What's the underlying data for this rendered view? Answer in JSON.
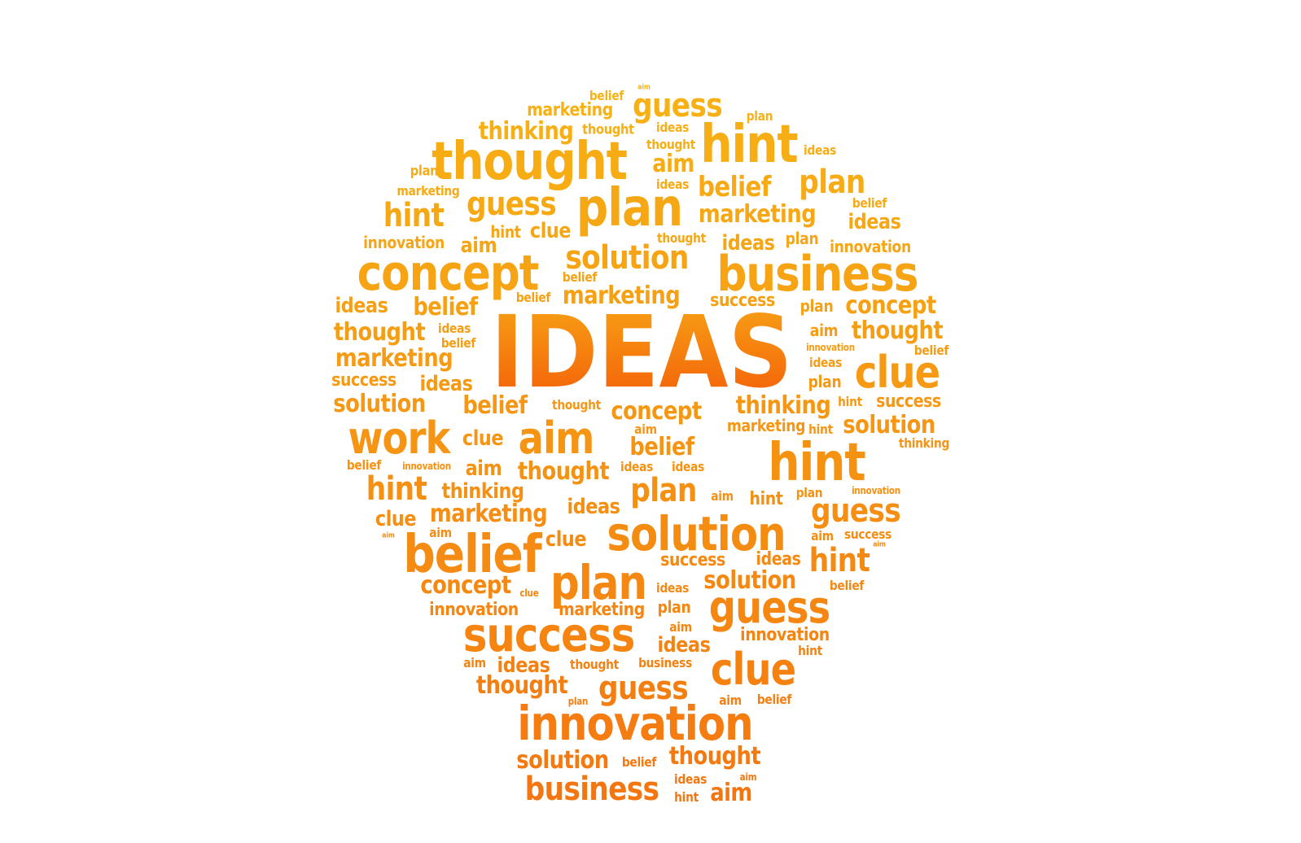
{
  "colors": {
    "background": "#ffffff",
    "top_word_color": "#f7b315",
    "bottom_word_color": "#f47510",
    "hero_gradient_top": "#f7a015",
    "hero_gradient_bottom": "#f46008"
  },
  "words": [
    {
      "text": "IDEAS"
    },
    {
      "text": "belief"
    },
    {
      "text": "aim"
    },
    {
      "text": "marketing"
    },
    {
      "text": "guess"
    },
    {
      "text": "plan"
    },
    {
      "text": "thinking"
    },
    {
      "text": "thought"
    },
    {
      "text": "ideas"
    },
    {
      "text": "thought"
    },
    {
      "text": "hint"
    },
    {
      "text": "ideas"
    },
    {
      "text": "thought"
    },
    {
      "text": "plan"
    },
    {
      "text": "aim"
    },
    {
      "text": "plan"
    },
    {
      "text": "marketing"
    },
    {
      "text": "ideas"
    },
    {
      "text": "belief"
    },
    {
      "text": "belief"
    },
    {
      "text": "guess"
    },
    {
      "text": "plan"
    },
    {
      "text": "hint"
    },
    {
      "text": "marketing"
    },
    {
      "text": "ideas"
    },
    {
      "text": "hint"
    },
    {
      "text": "clue"
    },
    {
      "text": "innovation"
    },
    {
      "text": "aim"
    },
    {
      "text": "thought"
    },
    {
      "text": "ideas"
    },
    {
      "text": "plan"
    },
    {
      "text": "innovation"
    },
    {
      "text": "solution"
    },
    {
      "text": "concept"
    },
    {
      "text": "business"
    },
    {
      "text": "belief"
    },
    {
      "text": "belief"
    },
    {
      "text": "marketing"
    },
    {
      "text": "ideas"
    },
    {
      "text": "belief"
    },
    {
      "text": "success"
    },
    {
      "text": "plan"
    },
    {
      "text": "concept"
    },
    {
      "text": "thought"
    },
    {
      "text": "ideas"
    },
    {
      "text": "aim"
    },
    {
      "text": "thought"
    },
    {
      "text": "belief"
    },
    {
      "text": "innovation"
    },
    {
      "text": "belief"
    },
    {
      "text": "marketing"
    },
    {
      "text": "ideas"
    },
    {
      "text": "clue"
    },
    {
      "text": "success"
    },
    {
      "text": "ideas"
    },
    {
      "text": "plan"
    },
    {
      "text": "solution"
    },
    {
      "text": "belief"
    },
    {
      "text": "thought"
    },
    {
      "text": "concept"
    },
    {
      "text": "thinking"
    },
    {
      "text": "hint"
    },
    {
      "text": "success"
    },
    {
      "text": "work"
    },
    {
      "text": "clue"
    },
    {
      "text": "aim"
    },
    {
      "text": "aim"
    },
    {
      "text": "belief"
    },
    {
      "text": "marketing"
    },
    {
      "text": "hint"
    },
    {
      "text": "solution"
    },
    {
      "text": "thinking"
    },
    {
      "text": "hint"
    },
    {
      "text": "belief"
    },
    {
      "text": "innovation"
    },
    {
      "text": "aim"
    },
    {
      "text": "thought"
    },
    {
      "text": "ideas"
    },
    {
      "text": "ideas"
    },
    {
      "text": "hint"
    },
    {
      "text": "thinking"
    },
    {
      "text": "plan"
    },
    {
      "text": "aim"
    },
    {
      "text": "hint"
    },
    {
      "text": "plan"
    },
    {
      "text": "innovation"
    },
    {
      "text": "clue"
    },
    {
      "text": "marketing"
    },
    {
      "text": "ideas"
    },
    {
      "text": "guess"
    },
    {
      "text": "aim"
    },
    {
      "text": "aim"
    },
    {
      "text": "clue"
    },
    {
      "text": "solution"
    },
    {
      "text": "aim"
    },
    {
      "text": "success"
    },
    {
      "text": "aim"
    },
    {
      "text": "belief"
    },
    {
      "text": "success"
    },
    {
      "text": "ideas"
    },
    {
      "text": "hint"
    },
    {
      "text": "plan"
    },
    {
      "text": "concept"
    },
    {
      "text": "clue"
    },
    {
      "text": "ideas"
    },
    {
      "text": "solution"
    },
    {
      "text": "belief"
    },
    {
      "text": "innovation"
    },
    {
      "text": "marketing"
    },
    {
      "text": "plan"
    },
    {
      "text": "guess"
    },
    {
      "text": "success"
    },
    {
      "text": "aim"
    },
    {
      "text": "innovation"
    },
    {
      "text": "ideas"
    },
    {
      "text": "hint"
    },
    {
      "text": "aim"
    },
    {
      "text": "ideas"
    },
    {
      "text": "thought"
    },
    {
      "text": "business"
    },
    {
      "text": "clue"
    },
    {
      "text": "thought"
    },
    {
      "text": "guess"
    },
    {
      "text": "plan"
    },
    {
      "text": "aim"
    },
    {
      "text": "belief"
    },
    {
      "text": "innovation"
    },
    {
      "text": "solution"
    },
    {
      "text": "belief"
    },
    {
      "text": "thought"
    },
    {
      "text": "aim"
    },
    {
      "text": "ideas"
    },
    {
      "text": "business"
    },
    {
      "text": "hint"
    },
    {
      "text": "aim"
    }
  ]
}
